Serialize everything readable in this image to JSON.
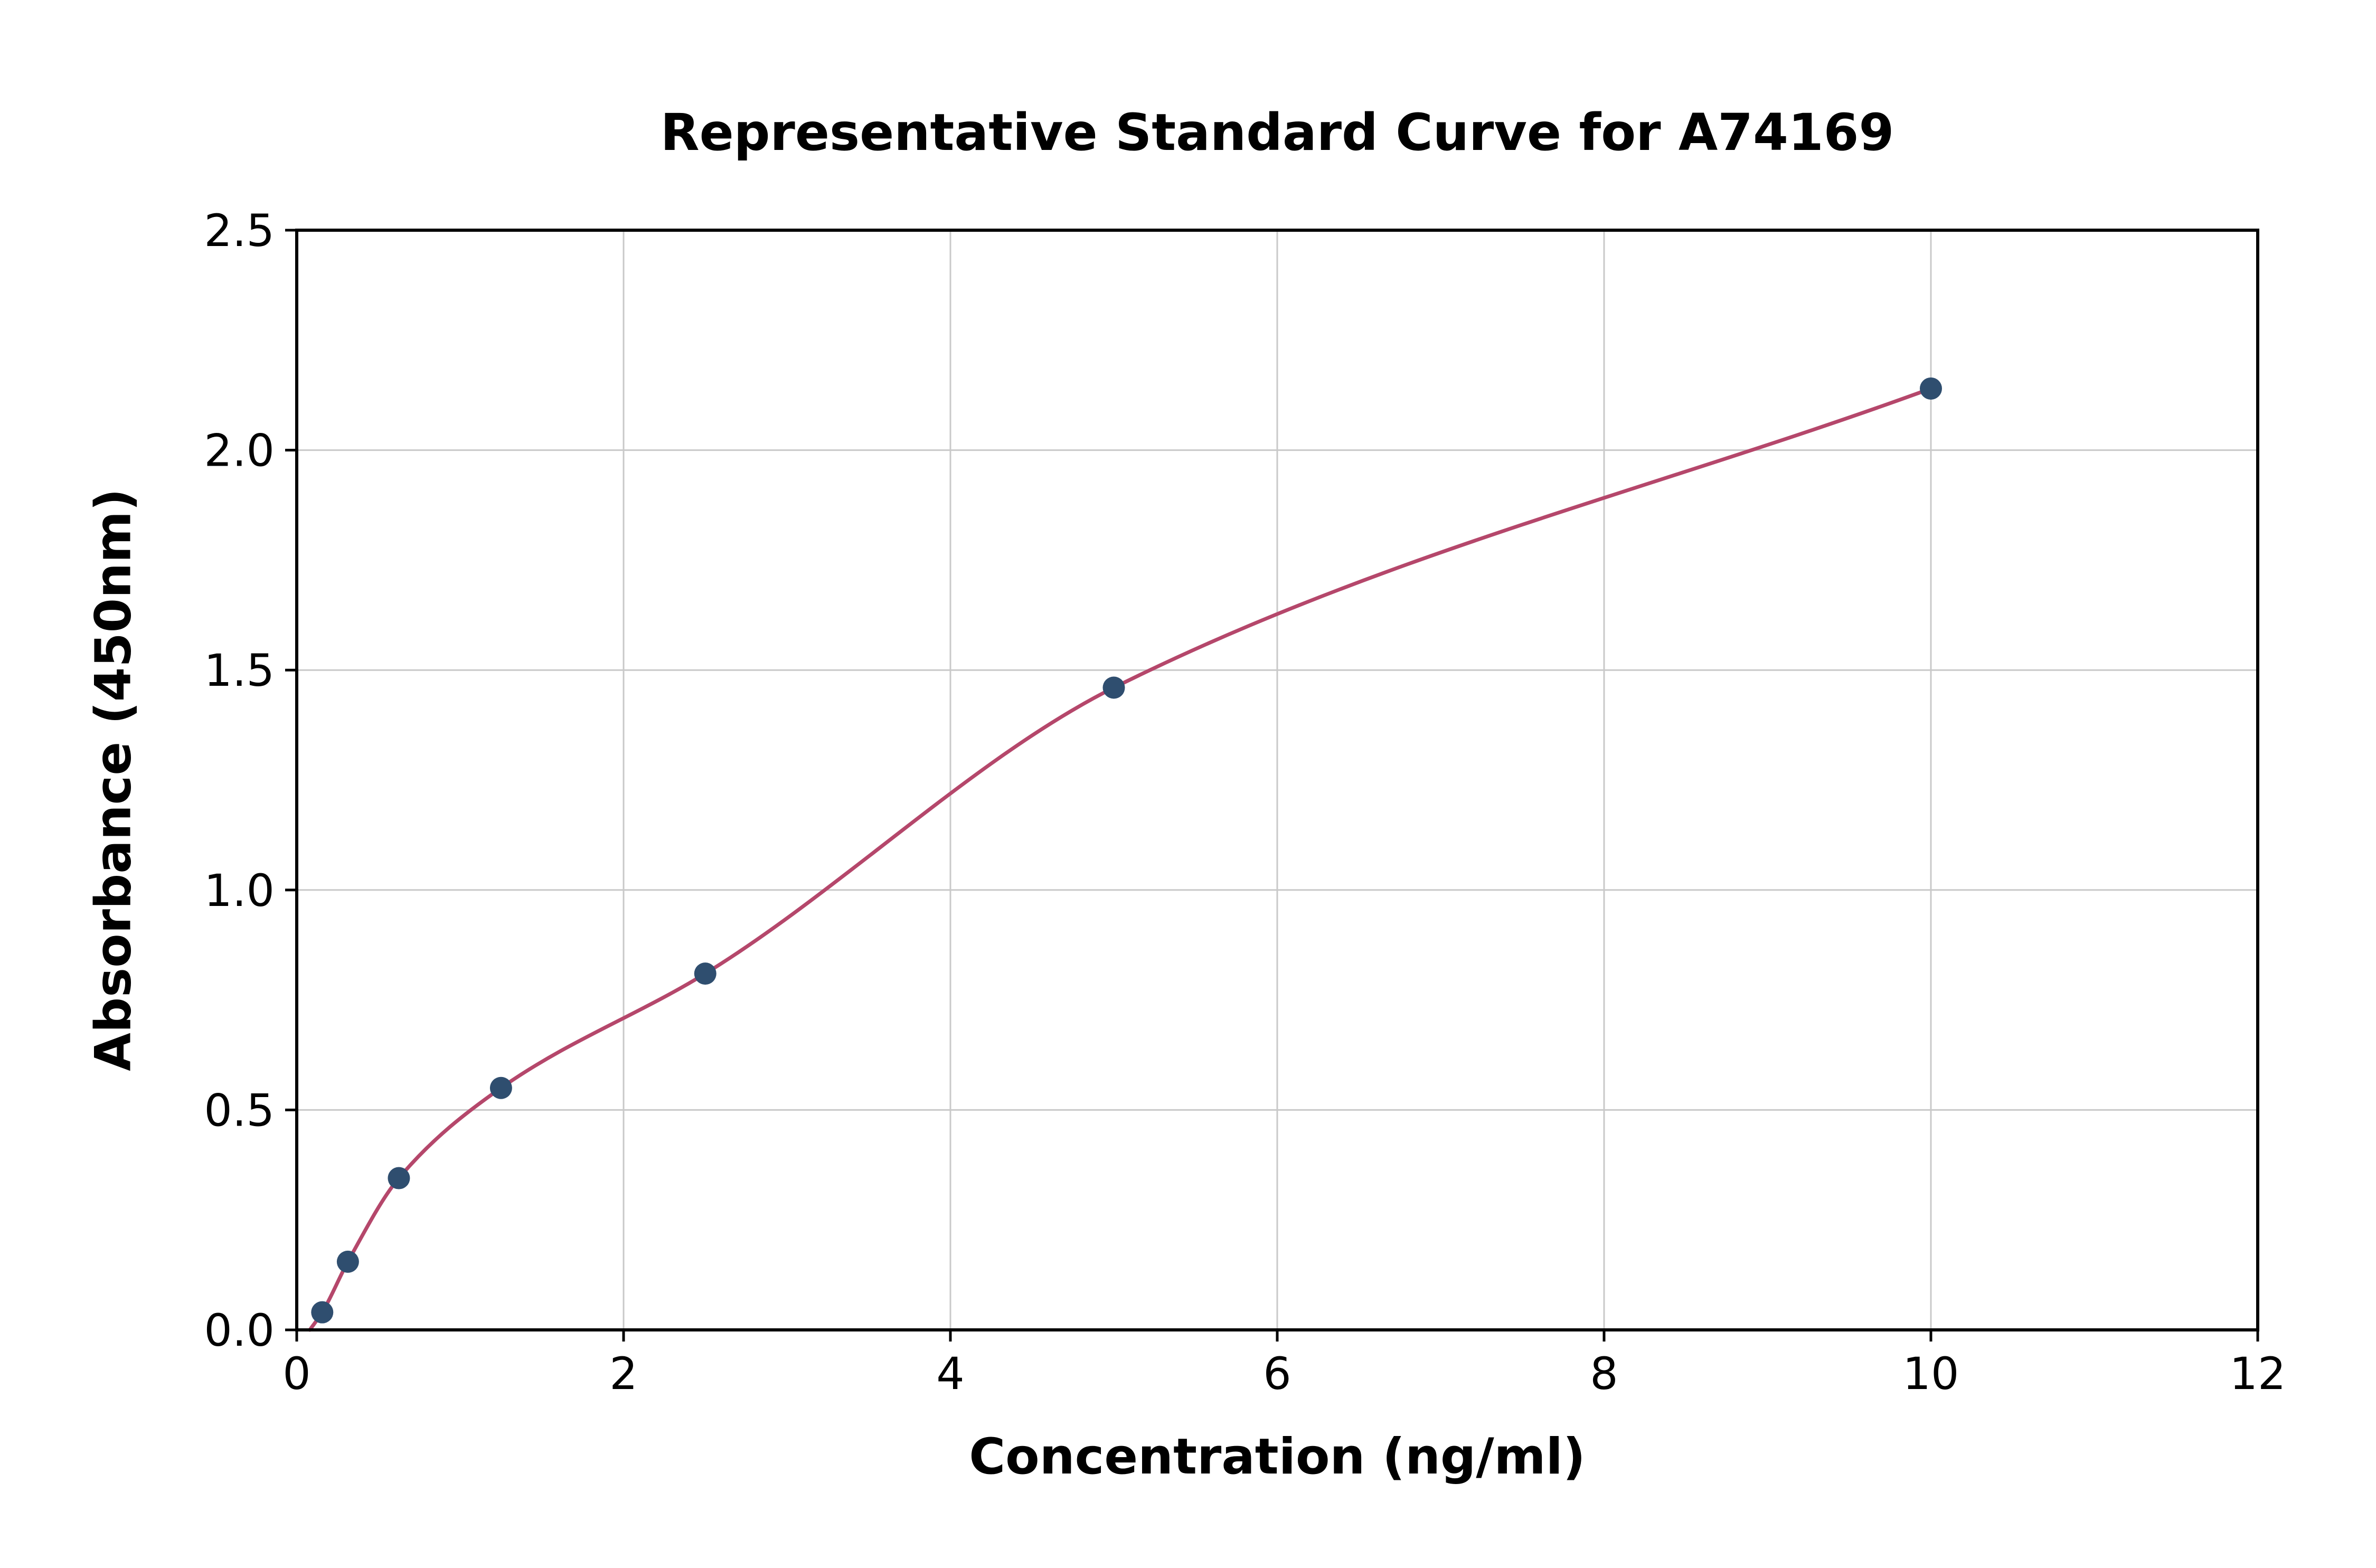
{
  "chart_data": {
    "type": "scatter",
    "title": "Representative Standard Curve for A74169",
    "xlabel": "Concentration (ng/ml)",
    "ylabel": "Absorbance (450nm)",
    "xlim": [
      0,
      12
    ],
    "ylim": [
      0,
      2.5
    ],
    "grid": true,
    "legend": "none",
    "xticks": [
      0,
      2,
      4,
      6,
      8,
      10,
      12
    ],
    "xtick_labels": [
      "0",
      "2",
      "4",
      "6",
      "8",
      "10",
      "12"
    ],
    "yticks": [
      0,
      0.5,
      1.0,
      1.5,
      2.0,
      2.5
    ],
    "ytick_labels": [
      "0.0",
      "0.5",
      "1.0",
      "1.5",
      "2.0",
      "2.5"
    ],
    "points": [
      {
        "x": 0.156,
        "y": 0.04
      },
      {
        "x": 0.313,
        "y": 0.155
      },
      {
        "x": 0.625,
        "y": 0.345
      },
      {
        "x": 1.25,
        "y": 0.55
      },
      {
        "x": 2.5,
        "y": 0.81
      },
      {
        "x": 5.0,
        "y": 1.46
      },
      {
        "x": 10.0,
        "y": 2.14
      }
    ],
    "curve_start": {
      "x": 0.08,
      "y": 0.0
    },
    "colors": {
      "point": "#2f4e6f",
      "curve": "#b5476b",
      "grid": "#c9c9c9",
      "axis": "#000000",
      "background": "#ffffff"
    }
  }
}
